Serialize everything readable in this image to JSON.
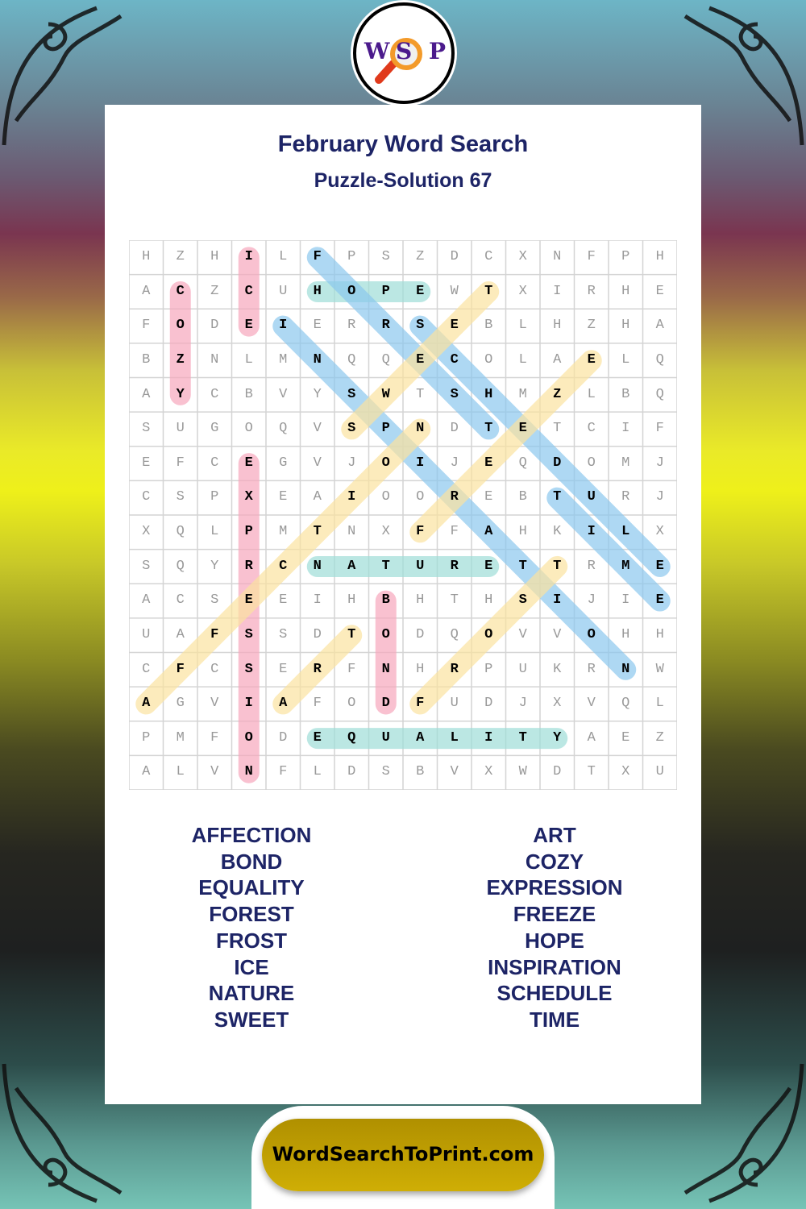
{
  "logo": {
    "letters": [
      "W",
      "S",
      "P"
    ],
    "icon": "magnifying-glass-icon"
  },
  "header": {
    "title": "February Word Search",
    "subtitle": "Puzzle-Solution 67"
  },
  "grid": {
    "rows": [
      "HZHILFPSZDCXNFPH",
      "ACZCUHOPEWTXIRHE",
      "FODEIERRSEBLHZHA",
      "BZNLMNQQECOLAELQ",
      "AYCBVYSWTSHMZLBQ",
      "SUGOQVSPNDTETCIF",
      "EFCEGVJOIJEQDOMJ",
      "CSPXEAIOOREBTURJ",
      "XQLPMTNXFFAHKILX",
      "SQYRCNATURETTRME",
      "ACSEEIHBHTHSIJIE",
      "UAFSSDTODQOVVOHH",
      "CFCSERFNHRPUKRNW",
      "AGVIAFODFUDJXVQL",
      "PMFODEQUALITYAEZ",
      "ALVNFLDSBVXWDTXU"
    ],
    "highlight_colors": {
      "pink": "#f7a8bd",
      "teal": "#9fded8",
      "blue": "#8cc8ee",
      "yellow": "#fbe3a0"
    },
    "solutions": [
      {
        "word": "ICE",
        "start": [
          0,
          3
        ],
        "end": [
          2,
          3
        ],
        "color": "pink"
      },
      {
        "word": "COZY",
        "start": [
          1,
          1
        ],
        "end": [
          4,
          1
        ],
        "color": "pink"
      },
      {
        "word": "EXPRESSION",
        "start": [
          6,
          3
        ],
        "end": [
          15,
          3
        ],
        "color": "pink"
      },
      {
        "word": "BOND",
        "start": [
          10,
          7
        ],
        "end": [
          13,
          7
        ],
        "color": "pink"
      },
      {
        "word": "HOPE",
        "start": [
          1,
          5
        ],
        "end": [
          1,
          8
        ],
        "color": "teal"
      },
      {
        "word": "NATURE",
        "start": [
          9,
          5
        ],
        "end": [
          9,
          10
        ],
        "color": "teal"
      },
      {
        "word": "EQUALITY",
        "start": [
          14,
          5
        ],
        "end": [
          14,
          12
        ],
        "color": "teal"
      },
      {
        "word": "FOREST",
        "start": [
          0,
          5
        ],
        "end": [
          5,
          10
        ],
        "color": "blue"
      },
      {
        "word": "INSPIRATION",
        "start": [
          2,
          4
        ],
        "end": [
          12,
          14
        ],
        "color": "blue"
      },
      {
        "word": "SCHEDULE",
        "start": [
          2,
          8
        ],
        "end": [
          9,
          15
        ],
        "color": "blue"
      },
      {
        "word": "TIME",
        "start": [
          7,
          12
        ],
        "end": [
          10,
          15
        ],
        "color": "blue"
      },
      {
        "word": "SWEET",
        "start": [
          5,
          6
        ],
        "end": [
          1,
          10
        ],
        "color": "yellow"
      },
      {
        "word": "FREEZE",
        "start": [
          8,
          8
        ],
        "end": [
          3,
          13
        ],
        "color": "yellow"
      },
      {
        "word": "AFFECTION",
        "start": [
          13,
          0
        ],
        "end": [
          5,
          8
        ],
        "color": "yellow"
      },
      {
        "word": "ART",
        "start": [
          13,
          4
        ],
        "end": [
          11,
          6
        ],
        "color": "yellow"
      },
      {
        "word": "FROST",
        "start": [
          13,
          8
        ],
        "end": [
          9,
          12
        ],
        "color": "yellow"
      }
    ]
  },
  "word_list": {
    "left": [
      "AFFECTION",
      "BOND",
      "EQUALITY",
      "FOREST",
      "FROST",
      "ICE",
      "NATURE",
      "SWEET"
    ],
    "right": [
      "ART",
      "COZY",
      "EXPRESSION",
      "FREEZE",
      "HOPE",
      "INSPIRATION",
      "SCHEDULE",
      "TIME"
    ]
  },
  "footer": {
    "site": "WordSearchToPrint.com"
  }
}
